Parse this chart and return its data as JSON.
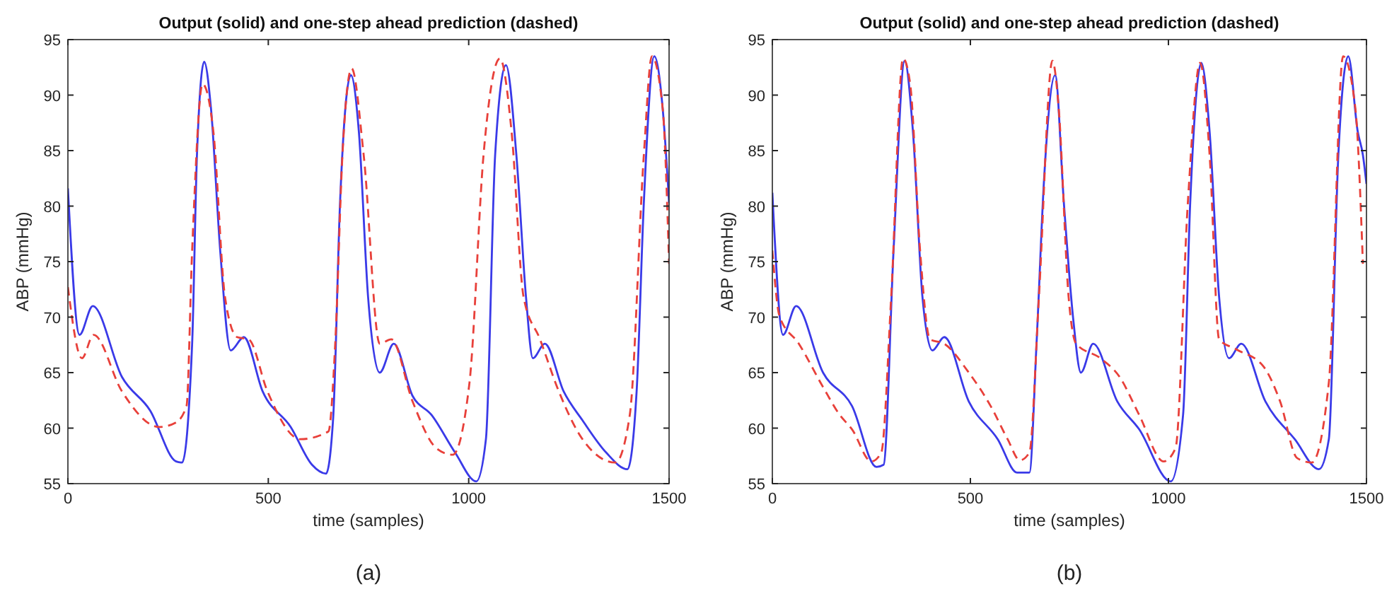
{
  "chart_data": [
    {
      "type": "line",
      "title": "Output (solid) and one-step ahead prediction (dashed)",
      "xlabel": "time (samples)",
      "ylabel": "ABP (mmHg)",
      "annotations": [
        "(a)"
      ],
      "xlim": [
        0,
        1500
      ],
      "xticks": [
        0,
        500,
        1000,
        1500
      ],
      "ylim": [
        55,
        95
      ],
      "yticks": [
        55,
        60,
        65,
        70,
        75,
        80,
        85,
        90,
        95
      ],
      "grid": false,
      "series": [
        {
          "color": "#3a3ae8",
          "line_style": "solid",
          "x": [
            0,
            29,
            62,
            135,
            205,
            270,
            285,
            310,
            322,
            340,
            357,
            380,
            406,
            439,
            486,
            556,
            609,
            644,
            662,
            679,
            706,
            726,
            749,
            778,
            813,
            860,
            907,
            966,
            1019,
            1043,
            1066,
            1093,
            1119,
            1143,
            1160,
            1190,
            1237,
            1284,
            1343,
            1396,
            1419,
            1437,
            1463,
            1484,
            1500
          ],
          "values": [
            81.6,
            68.4,
            71,
            64.6,
            61.6,
            57,
            56.9,
            67.6,
            84.6,
            93,
            88.8,
            76,
            67,
            68.2,
            63.3,
            60.1,
            56.7,
            55.9,
            61,
            80.3,
            91.8,
            86.7,
            71.8,
            65,
            67.6,
            62.9,
            61.2,
            57.8,
            55.2,
            59,
            84.6,
            92.7,
            84.6,
            71.8,
            66.3,
            67.6,
            63.3,
            60.7,
            57.8,
            56.3,
            63.3,
            80.3,
            93.5,
            88.8,
            80.3
          ]
        },
        {
          "color": "#e8403a",
          "line_style": "dashed",
          "x": [
            0,
            35,
            64,
            135,
            228,
            269,
            296,
            310,
            336,
            363,
            392,
            422,
            451,
            498,
            580,
            650,
            667,
            685,
            708,
            738,
            778,
            807,
            860,
            919,
            960,
            1002,
            1037,
            1078,
            1107,
            1137,
            1178,
            1225,
            1284,
            1366,
            1402,
            1437,
            1457,
            1484,
            1500
          ],
          "values": [
            72.7,
            66.3,
            68.4,
            63.3,
            60.1,
            60.5,
            62,
            76,
            91,
            86.7,
            71.8,
            68.2,
            68,
            63.3,
            59,
            59.7,
            67.6,
            84.6,
            92.4,
            84.6,
            67.6,
            68,
            62.4,
            58.2,
            57.6,
            64.1,
            84.6,
            93.3,
            86.7,
            71.8,
            68,
            63.3,
            59,
            56.9,
            61.2,
            84.6,
            93.5,
            88.8,
            74.8
          ]
        }
      ]
    },
    {
      "type": "line",
      "title": "Output (solid) and one-step ahead prediction (dashed)",
      "xlabel": "time (samples)",
      "ylabel": "ABP (mmHg)",
      "annotations": [
        "(b)"
      ],
      "xlim": [
        0,
        1500
      ],
      "xticks": [
        0,
        500,
        1000,
        1500
      ],
      "ylim": [
        55,
        95
      ],
      "yticks": [
        55,
        60,
        65,
        70,
        75,
        80,
        85,
        90,
        95
      ],
      "grid": false,
      "series": [
        {
          "color": "#3a3ae8",
          "line_style": "solid",
          "x": [
            0,
            27,
            60,
            128,
            201,
            263,
            281,
            306,
            334,
            355,
            379,
            404,
            434,
            496,
            569,
            618,
            649,
            667,
            686,
            714,
            736,
            760,
            779,
            810,
            871,
            926,
            1006,
            1037,
            1055,
            1083,
            1104,
            1128,
            1153,
            1184,
            1245,
            1319,
            1380,
            1405,
            1429,
            1454,
            1478,
            1491,
            1500
          ],
          "values": [
            81.2,
            68.4,
            71,
            65,
            62,
            56.5,
            56.7,
            76,
            93.1,
            86.7,
            71.8,
            67,
            68.2,
            62.4,
            59,
            56,
            56,
            67.6,
            82.4,
            91.8,
            80.3,
            69.7,
            65,
            67.6,
            62.4,
            59.9,
            55.2,
            61.2,
            80.3,
            92.9,
            86.7,
            71.8,
            66.3,
            67.6,
            62.4,
            59,
            56.3,
            59,
            84.6,
            93.5,
            86.7,
            84.6,
            82
          ]
        },
        {
          "color": "#e8403a",
          "line_style": "dashed",
          "x": [
            0,
            18,
            67,
            128,
            170,
            201,
            250,
            275,
            300,
            330,
            348,
            373,
            398,
            434,
            496,
            551,
            594,
            625,
            649,
            673,
            707,
            723,
            748,
            767,
            828,
            877,
            926,
            988,
            1018,
            1049,
            1080,
            1104,
            1128,
            1171,
            1239,
            1282,
            1325,
            1362,
            1405,
            1441,
            1472,
            1491
          ],
          "values": [
            76,
            70.1,
            67.6,
            63.7,
            61.2,
            59.9,
            57,
            57.8,
            71.8,
            93.3,
            91,
            76,
            68,
            67.6,
            65,
            62,
            59,
            57.1,
            57.8,
            71.8,
            93.1,
            88.8,
            71.8,
            67.6,
            66.3,
            64.6,
            61.2,
            57,
            58.2,
            80.3,
            92.9,
            84.6,
            68,
            67.1,
            65.6,
            62.4,
            57.3,
            56.9,
            64.1,
            93.5,
            88.8,
            74.8
          ]
        }
      ]
    }
  ]
}
